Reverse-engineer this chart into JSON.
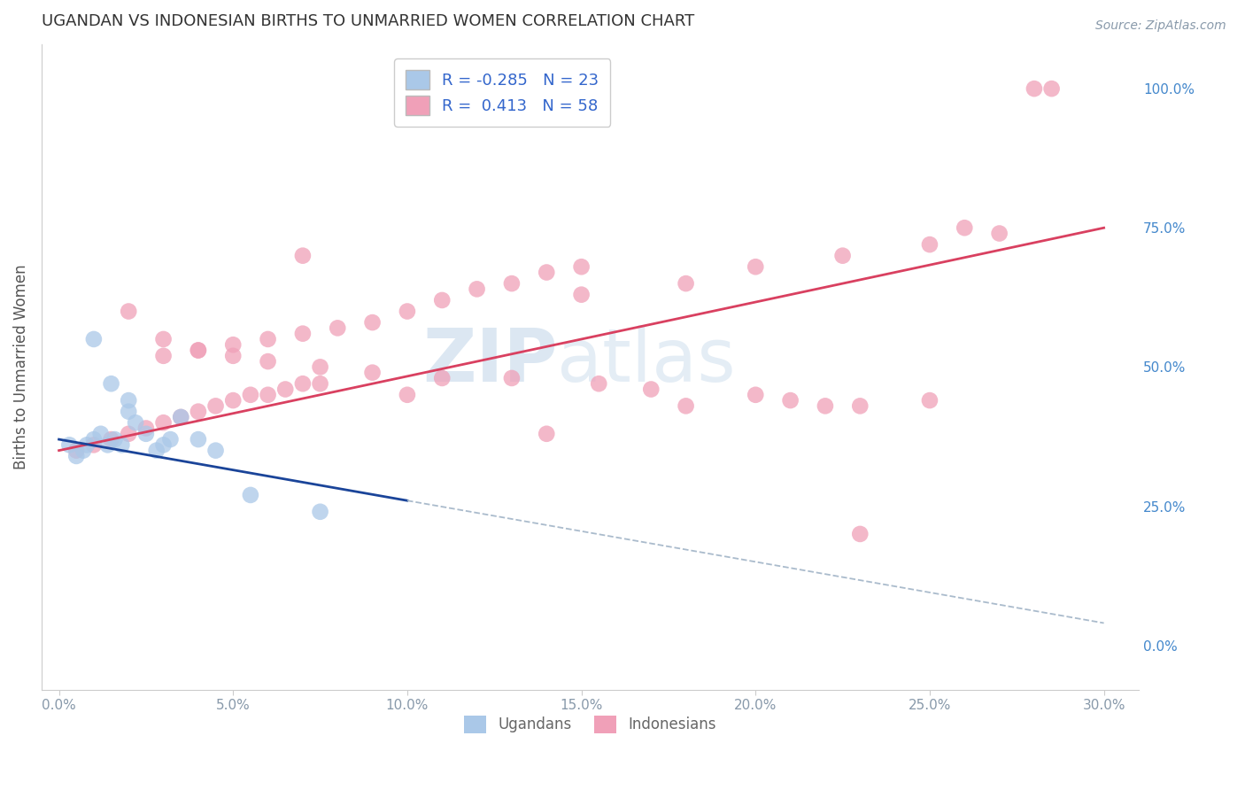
{
  "title": "UGANDAN VS INDONESIAN BIRTHS TO UNMARRIED WOMEN CORRELATION CHART",
  "source": "Source: ZipAtlas.com",
  "ylabel": "Births to Unmarried Women",
  "x_ticks": [
    0.0,
    5.0,
    10.0,
    15.0,
    20.0,
    25.0,
    30.0
  ],
  "y_ticks": [
    0.0,
    25.0,
    50.0,
    75.0,
    100.0
  ],
  "xlim": [
    -0.5,
    31.0
  ],
  "ylim": [
    -8.0,
    108.0
  ],
  "legend_r1": "R = -0.285",
  "legend_n1": "N = 23",
  "legend_r2": "R =  0.413",
  "legend_n2": "N = 58",
  "ugandan_x": [
    0.3,
    0.5,
    0.7,
    0.8,
    1.0,
    1.2,
    1.4,
    1.5,
    1.6,
    1.8,
    2.0,
    2.2,
    2.5,
    2.8,
    3.0,
    3.2,
    3.5,
    4.0,
    4.5,
    1.0,
    2.0,
    5.5,
    7.5
  ],
  "ugandan_y": [
    36,
    34,
    35,
    36,
    37,
    38,
    36,
    47,
    37,
    36,
    42,
    40,
    38,
    35,
    36,
    37,
    41,
    37,
    35,
    55,
    44,
    27,
    24
  ],
  "indonesian_x": [
    0.5,
    1.0,
    1.5,
    2.0,
    2.5,
    3.0,
    3.5,
    4.0,
    4.5,
    5.0,
    5.5,
    6.0,
    6.5,
    7.0,
    7.5,
    3.0,
    4.0,
    5.0,
    6.0,
    7.0,
    8.0,
    9.0,
    10.0,
    11.0,
    12.0,
    13.0,
    14.0,
    15.0,
    2.0,
    3.0,
    4.0,
    5.0,
    6.0,
    7.5,
    9.0,
    11.0,
    13.0,
    15.5,
    17.0,
    20.0,
    21.0,
    22.0,
    23.0,
    25.0,
    15.0,
    18.0,
    20.0,
    22.5,
    25.0,
    27.0,
    28.0,
    7.0,
    10.0,
    14.0,
    18.0,
    23.0,
    26.0,
    28.5
  ],
  "indonesian_y": [
    35,
    36,
    37,
    38,
    39,
    40,
    41,
    42,
    43,
    44,
    45,
    45,
    46,
    47,
    47,
    52,
    53,
    54,
    55,
    56,
    57,
    58,
    60,
    62,
    64,
    65,
    67,
    68,
    60,
    55,
    53,
    52,
    51,
    50,
    49,
    48,
    48,
    47,
    46,
    45,
    44,
    43,
    43,
    44,
    63,
    65,
    68,
    70,
    72,
    74,
    100,
    70,
    45,
    38,
    43,
    20,
    75,
    100
  ],
  "scatter_color_ugandan": "#aac8e8",
  "scatter_color_indonesian": "#f0a0b8",
  "line_color_ugandan": "#1a4499",
  "line_color_indonesian": "#d94060",
  "line_color_dashed": "#aabbcc",
  "watermark_zip": "ZIP",
  "watermark_atlas": "atlas",
  "background_color": "#ffffff",
  "grid_color": "#cccccc",
  "title_color": "#333333",
  "axis_label_color": "#555555",
  "tick_label_color": "#8899aa",
  "right_tick_color": "#4488cc"
}
